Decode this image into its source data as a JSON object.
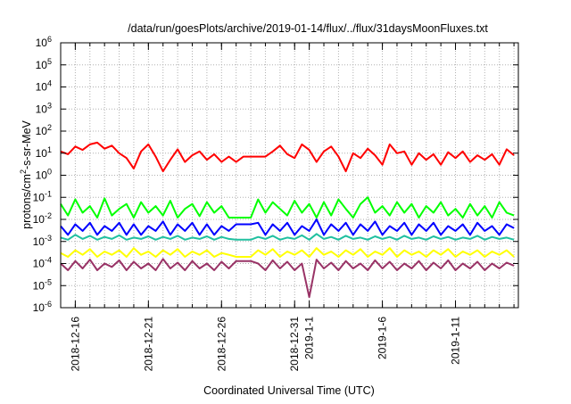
{
  "chart_data": {
    "type": "line",
    "title": "/data/run/goesPlots/archive/2019-01-14/flux/../flux/31daysMoonFluxes.txt",
    "xlabel": "Coordinated Universal Time (UTC)",
    "ylabel": "protons/cm2-s-sr-MeV",
    "ylabel_parts": {
      "pre": "protons/cm",
      "sup": "2",
      "post": "-s-sr-MeV"
    },
    "yscale": "log",
    "ylim": [
      1e-06,
      1000000.0
    ],
    "y_ticks": [
      {
        "base": "10",
        "exp": "-6"
      },
      {
        "base": "10",
        "exp": "-5"
      },
      {
        "base": "10",
        "exp": "-4"
      },
      {
        "base": "10",
        "exp": "-3"
      },
      {
        "base": "10",
        "exp": "-2"
      },
      {
        "base": "10",
        "exp": "-1"
      },
      {
        "base": "10",
        "exp": "0"
      },
      {
        "base": "10",
        "exp": "1"
      },
      {
        "base": "10",
        "exp": "2"
      },
      {
        "base": "10",
        "exp": "3"
      },
      {
        "base": "10",
        "exp": "4"
      },
      {
        "base": "10",
        "exp": "5"
      },
      {
        "base": "10",
        "exp": "6"
      }
    ],
    "x_unit": "days since 2018-12-15 00:00 UTC",
    "xlim": [
      0,
      31.3
    ],
    "x_ticks": [
      {
        "day": 1,
        "label": "2018-12-16"
      },
      {
        "day": 6,
        "label": "2018-12-21"
      },
      {
        "day": 11,
        "label": "2018-12-26"
      },
      {
        "day": 16,
        "label": "2018-12-31"
      },
      {
        "day": 17,
        "label": "2019-1-1"
      },
      {
        "day": 22,
        "label": "2019-1-6"
      },
      {
        "day": 27,
        "label": "2019-1-11"
      }
    ],
    "grid": true,
    "x_start_day": 0,
    "step_days": 0.5,
    "series": [
      {
        "name": "channel-red",
        "color": "#ff0000",
        "values": [
          12,
          9,
          20,
          14,
          25,
          30,
          16,
          22,
          10,
          6,
          2,
          12,
          25,
          7,
          1.5,
          5,
          15,
          4,
          8,
          12,
          5,
          9,
          4,
          7,
          4,
          7,
          7,
          7,
          7,
          12,
          22,
          9,
          6,
          25,
          14,
          4,
          12,
          20,
          7,
          1.5,
          10,
          6,
          16,
          8,
          3,
          25,
          10,
          12,
          3,
          10,
          5,
          9,
          3,
          11,
          6,
          12,
          4,
          8,
          5,
          9,
          3,
          15,
          8
        ]
      },
      {
        "name": "channel-green",
        "color": "#00ff00",
        "values": [
          0.05,
          0.015,
          0.08,
          0.02,
          0.04,
          0.012,
          0.09,
          0.015,
          0.03,
          0.05,
          0.012,
          0.06,
          0.02,
          0.04,
          0.015,
          0.07,
          0.012,
          0.03,
          0.05,
          0.014,
          0.06,
          0.02,
          0.04,
          0.012,
          0.012,
          0.012,
          0.012,
          0.08,
          0.02,
          0.06,
          0.03,
          0.015,
          0.07,
          0.02,
          0.05,
          0.012,
          0.06,
          0.015,
          0.08,
          0.03,
          0.012,
          0.05,
          0.1,
          0.02,
          0.04,
          0.015,
          0.06,
          0.02,
          0.05,
          0.012,
          0.04,
          0.02,
          0.06,
          0.015,
          0.03,
          0.012,
          0.05,
          0.015,
          0.04,
          0.012,
          0.06,
          0.02,
          0.015
        ]
      },
      {
        "name": "channel-blue",
        "color": "#0000ff",
        "values": [
          0.005,
          0.002,
          0.006,
          0.003,
          0.007,
          0.002,
          0.005,
          0.003,
          0.007,
          0.002,
          0.006,
          0.002,
          0.005,
          0.003,
          0.008,
          0.002,
          0.006,
          0.003,
          0.007,
          0.002,
          0.006,
          0.002,
          0.005,
          0.003,
          0.006,
          0.006,
          0.006,
          0.007,
          0.002,
          0.006,
          0.003,
          0.007,
          0.002,
          0.005,
          0.003,
          0.01,
          0.002,
          0.006,
          0.003,
          0.007,
          0.002,
          0.006,
          0.003,
          0.008,
          0.002,
          0.005,
          0.003,
          0.007,
          0.002,
          0.006,
          0.003,
          0.007,
          0.002,
          0.005,
          0.003,
          0.006,
          0.002,
          0.007,
          0.003,
          0.005,
          0.002,
          0.006,
          0.004
        ]
      },
      {
        "name": "channel-teal",
        "color": "#20c0a0",
        "values": [
          0.0015,
          0.0012,
          0.002,
          0.0013,
          0.0018,
          0.0012,
          0.0016,
          0.0013,
          0.0019,
          0.0012,
          0.0015,
          0.0013,
          0.0017,
          0.0012,
          0.0016,
          0.0013,
          0.0018,
          0.0012,
          0.0015,
          0.0013,
          0.0017,
          0.0012,
          0.0016,
          0.0013,
          0.0012,
          0.0012,
          0.0012,
          0.0016,
          0.0013,
          0.0018,
          0.0012,
          0.0015,
          0.0013,
          0.0019,
          0.0012,
          0.0022,
          0.0013,
          0.0016,
          0.0012,
          0.0018,
          0.0013,
          0.0015,
          0.0012,
          0.0017,
          0.0013,
          0.0016,
          0.0012,
          0.0018,
          0.0013,
          0.0015,
          0.0012,
          0.0017,
          0.0013,
          0.0016,
          0.0012,
          0.0015,
          0.0013,
          0.0018,
          0.0012,
          0.0016,
          0.0013,
          0.0015,
          0.0012
        ]
      },
      {
        "name": "channel-yellow",
        "color": "#ffff00",
        "values": [
          0.0003,
          0.0002,
          0.0004,
          0.00025,
          0.00045,
          0.0002,
          0.00035,
          0.00025,
          0.0004,
          0.0002,
          0.0005,
          0.00025,
          0.00035,
          0.0002,
          0.0004,
          0.00025,
          0.00045,
          0.0002,
          0.00035,
          0.00025,
          0.0004,
          0.0002,
          0.0003,
          0.00025,
          0.0002,
          0.0002,
          0.0002,
          0.0004,
          0.00025,
          0.00045,
          0.0002,
          0.00035,
          0.00025,
          0.0004,
          0.0002,
          0.0005,
          0.00025,
          0.00035,
          0.0002,
          0.0004,
          0.00025,
          0.00045,
          0.0002,
          0.00035,
          0.00025,
          0.0005,
          0.0002,
          0.0004,
          0.00025,
          0.00035,
          0.0002,
          0.0004,
          0.00025,
          0.00045,
          0.0002,
          0.00035,
          0.00025,
          0.0004,
          0.0002,
          0.00035,
          0.00025,
          0.0004,
          0.0002
        ]
      },
      {
        "name": "channel-purple",
        "color": "#993366",
        "values": [
          0.0001,
          5e-05,
          0.00013,
          6e-05,
          0.00015,
          5e-05,
          0.0001,
          7e-05,
          0.00014,
          5e-05,
          0.00012,
          6e-05,
          0.0001,
          5e-05,
          0.00016,
          6e-05,
          0.00011,
          5e-05,
          0.00013,
          6e-05,
          0.0001,
          5e-05,
          0.00012,
          6e-05,
          0.00013,
          0.00013,
          0.00013,
          0.0001,
          5e-05,
          0.00014,
          6e-05,
          0.00012,
          5e-05,
          0.0001,
          3e-06,
          0.00015,
          6e-05,
          0.00011,
          5e-05,
          0.00013,
          6e-05,
          0.0001,
          5e-05,
          0.00014,
          6e-05,
          0.00012,
          5e-05,
          0.0001,
          6e-05,
          0.00013,
          5e-05,
          0.00011,
          6e-05,
          0.00014,
          5e-05,
          0.0001,
          6e-05,
          0.00012,
          5e-05,
          0.0001,
          6e-05,
          0.00011,
          8e-05
        ]
      }
    ]
  }
}
